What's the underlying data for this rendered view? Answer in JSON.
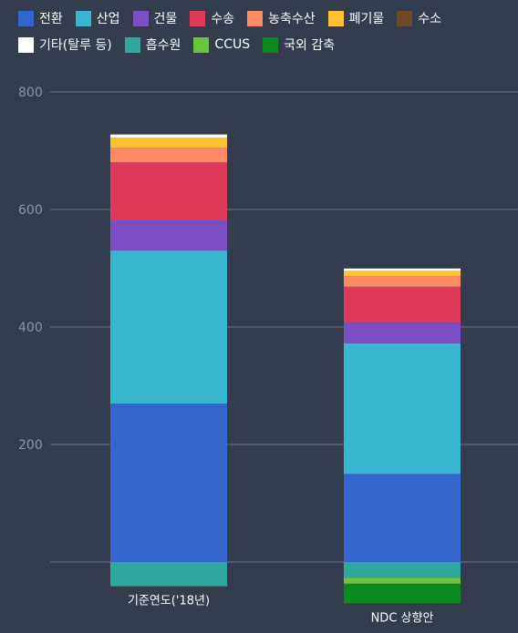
{
  "chart_data": {
    "type": "bar",
    "stacked": true,
    "categories": [
      "기준연도('18년)",
      "NDC 상향안"
    ],
    "ylim": [
      0,
      800
    ],
    "yticks": [
      200,
      400,
      600,
      800
    ],
    "grid": true,
    "legend_position": "top",
    "series": [
      {
        "name": "전환",
        "color": "#3366cc",
        "values": [
          269.6,
          149.9
        ]
      },
      {
        "name": "산업",
        "color": "#38b6d1",
        "values": [
          260.5,
          222.6
        ]
      },
      {
        "name": "건물",
        "color": "#7e4fc4",
        "values": [
          52.1,
          35.0
        ]
      },
      {
        "name": "수송",
        "color": "#e03a5a",
        "values": [
          98.1,
          61.0
        ]
      },
      {
        "name": "농축수산",
        "color": "#ff8a65",
        "values": [
          24.7,
          18.0
        ]
      },
      {
        "name": "폐기물",
        "color": "#ffc130",
        "values": [
          17.1,
          9.1
        ]
      },
      {
        "name": "수소",
        "color": "#6b4a24",
        "values": [
          0,
          0
        ]
      },
      {
        "name": "기타(탈루 등)",
        "color": "#ffffff",
        "values": [
          5.6,
          3.9
        ]
      },
      {
        "name": "흡수원",
        "color": "#2fa6a0",
        "values": [
          -41.3,
          -26.7
        ]
      },
      {
        "name": "CCUS",
        "color": "#6cc33d",
        "values": [
          0,
          -10.3
        ]
      },
      {
        "name": "국외 감축",
        "color": "#0b8a1e",
        "values": [
          0,
          -33.5
        ]
      }
    ]
  }
}
